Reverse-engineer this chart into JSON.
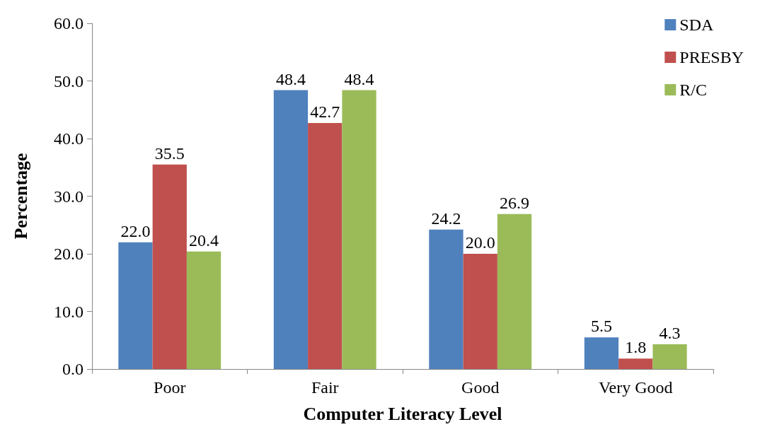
{
  "chart_data": {
    "type": "bar",
    "xlabel": "Computer Literacy Level",
    "ylabel": "Percentage",
    "categories": [
      "Poor",
      "Fair",
      "Good",
      "Very Good"
    ],
    "series": [
      {
        "name": "SDA",
        "color": "#4f81bd",
        "values": [
          22.0,
          48.4,
          24.2,
          5.5
        ],
        "value_labels": [
          "22.0",
          "48.4",
          "24.2",
          "5.5"
        ]
      },
      {
        "name": "PRESBY",
        "color": "#c0504d",
        "values": [
          35.5,
          42.7,
          20.0,
          1.8
        ],
        "value_labels": [
          "35.5",
          "42.7",
          "20.0",
          "1.8"
        ]
      },
      {
        "name": "R/C",
        "color": "#9bbb59",
        "values": [
          20.4,
          48.4,
          26.9,
          4.3
        ],
        "value_labels": [
          "20.4",
          "48.4",
          "26.9",
          "4.3"
        ]
      }
    ],
    "ylim": [
      0,
      60
    ],
    "yticks": [
      {
        "value": 0,
        "label": "0.0"
      },
      {
        "value": 10,
        "label": "10.0"
      },
      {
        "value": 20,
        "label": "20.0"
      },
      {
        "value": 30,
        "label": "30.0"
      },
      {
        "value": 40,
        "label": "40.0"
      },
      {
        "value": 50,
        "label": "50.0"
      },
      {
        "value": 60,
        "label": "60.0"
      }
    ],
    "grid": false,
    "legend": "top right"
  }
}
